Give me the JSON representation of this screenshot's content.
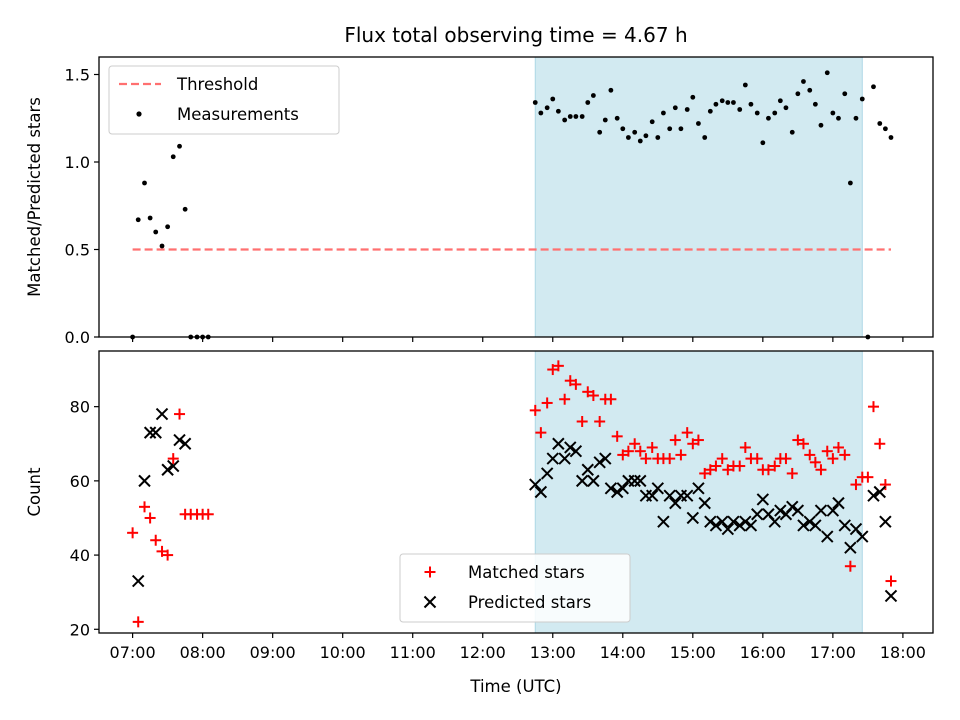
{
  "chart_data": {
    "title": "Flux total observing time = 4.67 h",
    "xlabel": "Time (UTC)",
    "x_ticks": [
      "07:00",
      "08:00",
      "09:00",
      "10:00",
      "11:00",
      "12:00",
      "13:00",
      "14:00",
      "15:00",
      "16:00",
      "17:00",
      "18:00"
    ],
    "xlim_hours": [
      6.52,
      18.43
    ],
    "shaded_interval_hours": [
      12.75,
      17.42
    ],
    "shade_color": "#add8e6",
    "panels": [
      {
        "type": "scatter",
        "ylabel": "Matched/Predicted stars",
        "ylim": [
          0,
          1.6
        ],
        "y_ticks": [
          "0.0",
          "0.5",
          "1.0",
          "1.5"
        ],
        "legend_position": "upper-left",
        "threshold": {
          "name": "Threshold",
          "value": 0.5,
          "x_range": [
            7.0,
            17.83
          ],
          "color": "#ff7070"
        },
        "series": [
          {
            "name": "Measurements",
            "color": "#000000",
            "marker": "dot",
            "points": [
              [
                7.0,
                0.0
              ],
              [
                7.08,
                0.67
              ],
              [
                7.17,
                0.88
              ],
              [
                7.25,
                0.68
              ],
              [
                7.33,
                0.6
              ],
              [
                7.42,
                0.52
              ],
              [
                7.5,
                0.63
              ],
              [
                7.58,
                1.03
              ],
              [
                7.67,
                1.09
              ],
              [
                7.75,
                0.73
              ],
              [
                7.83,
                0.0
              ],
              [
                7.92,
                0.0
              ],
              [
                8.0,
                0.0
              ],
              [
                8.08,
                0.0
              ],
              [
                12.75,
                1.34
              ],
              [
                12.83,
                1.28
              ],
              [
                12.92,
                1.31
              ],
              [
                13.0,
                1.36
              ],
              [
                13.08,
                1.29
              ],
              [
                13.17,
                1.24
              ],
              [
                13.25,
                1.26
              ],
              [
                13.33,
                1.26
              ],
              [
                13.42,
                1.26
              ],
              [
                13.5,
                1.34
              ],
              [
                13.58,
                1.38
              ],
              [
                13.67,
                1.17
              ],
              [
                13.75,
                1.24
              ],
              [
                13.83,
                1.41
              ],
              [
                13.92,
                1.25
              ],
              [
                14.0,
                1.19
              ],
              [
                14.08,
                1.14
              ],
              [
                14.17,
                1.17
              ],
              [
                14.25,
                1.12
              ],
              [
                14.33,
                1.15
              ],
              [
                14.42,
                1.23
              ],
              [
                14.5,
                1.14
              ],
              [
                14.58,
                1.28
              ],
              [
                14.67,
                1.19
              ],
              [
                14.75,
                1.31
              ],
              [
                14.83,
                1.19
              ],
              [
                14.92,
                1.3
              ],
              [
                15.0,
                1.37
              ],
              [
                15.08,
                1.22
              ],
              [
                15.17,
                1.14
              ],
              [
                15.25,
                1.29
              ],
              [
                15.33,
                1.33
              ],
              [
                15.42,
                1.35
              ],
              [
                15.5,
                1.34
              ],
              [
                15.58,
                1.34
              ],
              [
                15.67,
                1.3
              ],
              [
                15.75,
                1.44
              ],
              [
                15.83,
                1.33
              ],
              [
                15.92,
                1.28
              ],
              [
                16.0,
                1.11
              ],
              [
                16.08,
                1.25
              ],
              [
                16.17,
                1.28
              ],
              [
                16.25,
                1.35
              ],
              [
                16.33,
                1.31
              ],
              [
                16.42,
                1.17
              ],
              [
                16.5,
                1.39
              ],
              [
                16.58,
                1.46
              ],
              [
                16.67,
                1.41
              ],
              [
                16.75,
                1.33
              ],
              [
                16.83,
                1.21
              ],
              [
                16.92,
                1.51
              ],
              [
                17.0,
                1.28
              ],
              [
                17.08,
                1.25
              ],
              [
                17.17,
                1.39
              ],
              [
                17.25,
                0.88
              ],
              [
                17.33,
                1.25
              ],
              [
                17.42,
                1.36
              ],
              [
                17.5,
                0.0
              ],
              [
                17.58,
                1.43
              ],
              [
                17.67,
                1.22
              ],
              [
                17.75,
                1.19
              ],
              [
                17.83,
                1.14
              ]
            ]
          }
        ]
      },
      {
        "type": "scatter",
        "ylabel": "Count",
        "ylim": [
          19,
          95
        ],
        "y_ticks": [
          "20",
          "40",
          "60",
          "80"
        ],
        "legend_position": "lower-center",
        "series": [
          {
            "name": "Matched stars",
            "color": "#ff0000",
            "marker": "plus",
            "points": [
              [
                7.0,
                46
              ],
              [
                7.08,
                22
              ],
              [
                7.17,
                53
              ],
              [
                7.25,
                50
              ],
              [
                7.33,
                44
              ],
              [
                7.42,
                41
              ],
              [
                7.5,
                40
              ],
              [
                7.58,
                66
              ],
              [
                7.67,
                78
              ],
              [
                7.75,
                51
              ],
              [
                7.83,
                51
              ],
              [
                7.92,
                51
              ],
              [
                8.0,
                51
              ],
              [
                8.08,
                51
              ],
              [
                12.75,
                79
              ],
              [
                12.83,
                73
              ],
              [
                12.92,
                81
              ],
              [
                13.0,
                90
              ],
              [
                13.08,
                91
              ],
              [
                13.17,
                82
              ],
              [
                13.25,
                87
              ],
              [
                13.33,
                86
              ],
              [
                13.42,
                76
              ],
              [
                13.5,
                84
              ],
              [
                13.58,
                83
              ],
              [
                13.67,
                76
              ],
              [
                13.75,
                82
              ],
              [
                13.83,
                82
              ],
              [
                13.92,
                72
              ],
              [
                14.0,
                67
              ],
              [
                14.08,
                68
              ],
              [
                14.17,
                70
              ],
              [
                14.25,
                68
              ],
              [
                14.33,
                66
              ],
              [
                14.42,
                69
              ],
              [
                14.5,
                66
              ],
              [
                14.58,
                66
              ],
              [
                14.67,
                66
              ],
              [
                14.75,
                71
              ],
              [
                14.83,
                67
              ],
              [
                14.92,
                73
              ],
              [
                15.0,
                70
              ],
              [
                15.08,
                71
              ],
              [
                15.17,
                62
              ],
              [
                15.25,
                63
              ],
              [
                15.33,
                64
              ],
              [
                15.42,
                66
              ],
              [
                15.5,
                63
              ],
              [
                15.58,
                64
              ],
              [
                15.67,
                64
              ],
              [
                15.75,
                69
              ],
              [
                15.83,
                66
              ],
              [
                15.92,
                66
              ],
              [
                16.0,
                63
              ],
              [
                16.08,
                63
              ],
              [
                16.17,
                64
              ],
              [
                16.25,
                66
              ],
              [
                16.33,
                66
              ],
              [
                16.42,
                62
              ],
              [
                16.5,
                71
              ],
              [
                16.58,
                70
              ],
              [
                16.67,
                67
              ],
              [
                16.75,
                65
              ],
              [
                16.83,
                63
              ],
              [
                16.92,
                68
              ],
              [
                17.0,
                66
              ],
              [
                17.08,
                69
              ],
              [
                17.17,
                67
              ],
              [
                17.25,
                37
              ],
              [
                17.33,
                59
              ],
              [
                17.42,
                61
              ],
              [
                17.5,
                61
              ],
              [
                17.58,
                80
              ],
              [
                17.67,
                70
              ],
              [
                17.75,
                59
              ],
              [
                17.83,
                33
              ]
            ]
          },
          {
            "name": "Predicted stars",
            "color": "#000000",
            "marker": "x",
            "points": [
              [
                7.08,
                33
              ],
              [
                7.17,
                60
              ],
              [
                7.25,
                73
              ],
              [
                7.33,
                73
              ],
              [
                7.42,
                78
              ],
              [
                7.5,
                63
              ],
              [
                7.58,
                64
              ],
              [
                7.67,
                71
              ],
              [
                7.75,
                70
              ],
              [
                12.75,
                59
              ],
              [
                12.83,
                57
              ],
              [
                12.92,
                62
              ],
              [
                13.0,
                66
              ],
              [
                13.08,
                70
              ],
              [
                13.17,
                66
              ],
              [
                13.25,
                69
              ],
              [
                13.33,
                68
              ],
              [
                13.42,
                60
              ],
              [
                13.5,
                63
              ],
              [
                13.58,
                60
              ],
              [
                13.67,
                65
              ],
              [
                13.75,
                66
              ],
              [
                13.83,
                58
              ],
              [
                13.92,
                57
              ],
              [
                14.0,
                58
              ],
              [
                14.08,
                60
              ],
              [
                14.17,
                60
              ],
              [
                14.25,
                60
              ],
              [
                14.33,
                56
              ],
              [
                14.42,
                56
              ],
              [
                14.5,
                58
              ],
              [
                14.58,
                49
              ],
              [
                14.67,
                56
              ],
              [
                14.75,
                54
              ],
              [
                14.83,
                56
              ],
              [
                14.92,
                56
              ],
              [
                15.0,
                50
              ],
              [
                15.08,
                58
              ],
              [
                15.17,
                54
              ],
              [
                15.25,
                49
              ],
              [
                15.33,
                48
              ],
              [
                15.42,
                49
              ],
              [
                15.5,
                47
              ],
              [
                15.58,
                49
              ],
              [
                15.67,
                48
              ],
              [
                15.75,
                49
              ],
              [
                15.83,
                48
              ],
              [
                15.92,
                51
              ],
              [
                16.0,
                55
              ],
              [
                16.08,
                51
              ],
              [
                16.17,
                49
              ],
              [
                16.25,
                52
              ],
              [
                16.33,
                51
              ],
              [
                16.42,
                53
              ],
              [
                16.5,
                52
              ],
              [
                16.58,
                48
              ],
              [
                16.67,
                49
              ],
              [
                16.75,
                48
              ],
              [
                16.83,
                52
              ],
              [
                16.92,
                45
              ],
              [
                17.0,
                52
              ],
              [
                17.08,
                54
              ],
              [
                17.17,
                48
              ],
              [
                17.25,
                42
              ],
              [
                17.33,
                47
              ],
              [
                17.42,
                45
              ],
              [
                17.58,
                56
              ],
              [
                17.67,
                57
              ],
              [
                17.75,
                49
              ],
              [
                17.83,
                29
              ]
            ]
          }
        ]
      }
    ]
  }
}
